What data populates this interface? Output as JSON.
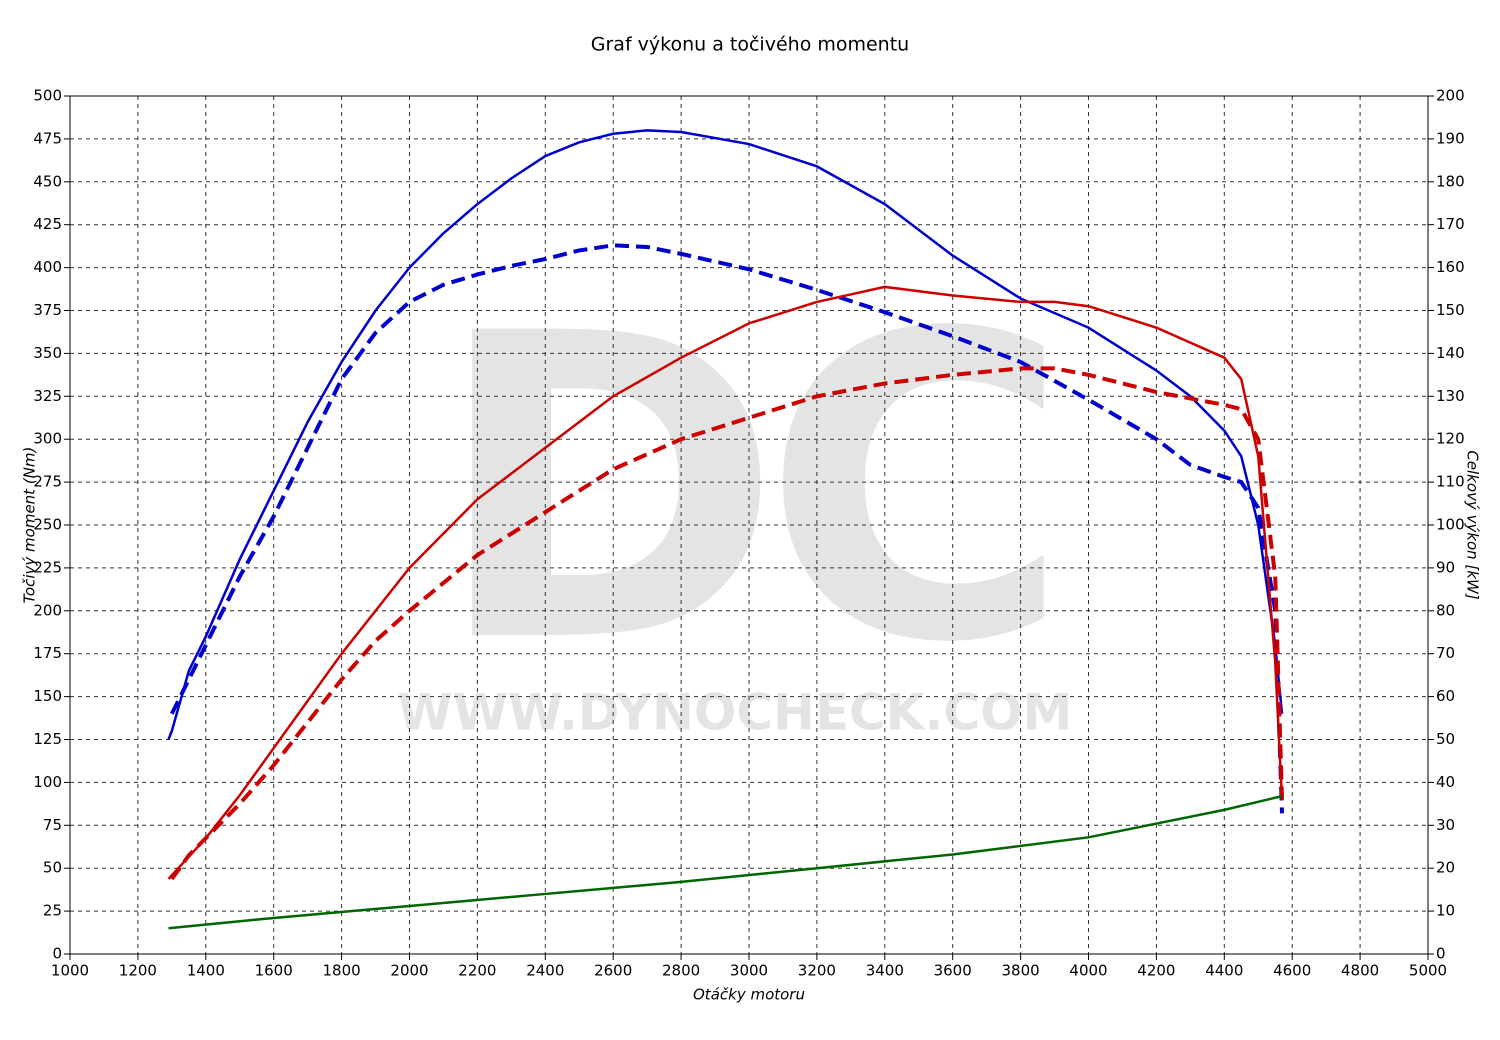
{
  "chart_data": {
    "type": "line",
    "title": "Graf výkonu a točivého momentu",
    "xlabel": "Otáčky motoru",
    "ylabel": "Točivý moment (Nm)",
    "y2label": "Celkový výkon [kW]",
    "watermark": {
      "logo": "DC",
      "url": "WWW.DYNOCHECK.COM"
    },
    "grid": true,
    "xlim": [
      1000,
      5000
    ],
    "xticks": [
      1000,
      1200,
      1400,
      1600,
      1800,
      2000,
      2200,
      2400,
      2600,
      2800,
      3000,
      3200,
      3400,
      3600,
      3800,
      4000,
      4200,
      4400,
      4600,
      4800,
      5000
    ],
    "ylim": [
      0,
      500
    ],
    "yticks": [
      0,
      25,
      50,
      75,
      100,
      125,
      150,
      175,
      200,
      225,
      250,
      275,
      300,
      325,
      350,
      375,
      400,
      425,
      450,
      475,
      500
    ],
    "y2lim": [
      0,
      200
    ],
    "y2ticks": [
      0,
      10,
      20,
      30,
      40,
      50,
      60,
      70,
      80,
      90,
      100,
      110,
      120,
      130,
      140,
      150,
      160,
      170,
      180,
      190,
      200
    ],
    "series": [
      {
        "color": "#0000cc",
        "dashed": false,
        "axis": "y",
        "x": [
          1290,
          1300,
          1350,
          1400,
          1500,
          1600,
          1700,
          1800,
          1900,
          2000,
          2100,
          2200,
          2300,
          2400,
          2500,
          2600,
          2700,
          2800,
          3000,
          3200,
          3400,
          3600,
          3800,
          4000,
          4200,
          4300,
          4400,
          4450,
          4500,
          4550,
          4570
        ],
        "values": [
          125,
          130,
          165,
          185,
          230,
          270,
          310,
          345,
          375,
          400,
          420,
          437,
          452,
          465,
          473,
          478,
          480,
          479,
          472,
          459,
          437,
          407,
          382,
          365,
          340,
          325,
          305,
          290,
          250,
          180,
          140
        ]
      },
      {
        "color": "#0000cc",
        "dashed": true,
        "axis": "y",
        "x": [
          1300,
          1350,
          1400,
          1500,
          1600,
          1700,
          1800,
          1900,
          2000,
          2100,
          2200,
          2300,
          2400,
          2500,
          2600,
          2700,
          2800,
          3000,
          3200,
          3400,
          3600,
          3800,
          4000,
          4200,
          4300,
          4400,
          4450,
          4500,
          4550,
          4570
        ],
        "values": [
          140,
          160,
          180,
          220,
          255,
          295,
          335,
          362,
          380,
          390,
          396,
          401,
          405,
          410,
          413,
          412,
          408,
          399,
          387,
          374,
          360,
          345,
          323,
          300,
          285,
          278,
          275,
          260,
          200,
          82
        ]
      },
      {
        "color": "#cc0000",
        "dashed": false,
        "axis": "y2",
        "x": [
          1290,
          1400,
          1500,
          1600,
          1700,
          1800,
          1900,
          2000,
          2200,
          2400,
          2600,
          2800,
          3000,
          3200,
          3400,
          3600,
          3800,
          3900,
          4000,
          4200,
          4400,
          4450,
          4500,
          4550,
          4570
        ],
        "values": [
          17.5,
          27,
          37,
          48,
          59,
          70,
          80,
          90,
          106,
          118,
          130,
          139,
          147,
          152,
          155.5,
          153.5,
          152,
          152,
          151,
          146,
          139,
          134,
          116,
          68,
          36
        ]
      },
      {
        "color": "#cc0000",
        "dashed": true,
        "axis": "y2",
        "x": [
          1300,
          1350,
          1400,
          1500,
          1600,
          1700,
          1800,
          1900,
          2000,
          2200,
          2400,
          2600,
          2800,
          3000,
          3200,
          3400,
          3600,
          3800,
          3900,
          4000,
          4200,
          4400,
          4450,
          4500,
          4550,
          4570
        ],
        "values": [
          17.5,
          23,
          27,
          35,
          44,
          54,
          64,
          73,
          80,
          93,
          103,
          113,
          120,
          125,
          130,
          133,
          135,
          136.5,
          136.5,
          135,
          131,
          128,
          127,
          120,
          88,
          36
        ]
      },
      {
        "color": "#006600",
        "dashed": false,
        "axis": "y2",
        "x": [
          1290,
          1600,
          2000,
          2400,
          2800,
          3200,
          3600,
          4000,
          4200,
          4400,
          4570
        ],
        "values": [
          6,
          8.4,
          11.2,
          14,
          16.8,
          20,
          23.2,
          27.2,
          30.4,
          33.6,
          36.8
        ]
      }
    ]
  }
}
